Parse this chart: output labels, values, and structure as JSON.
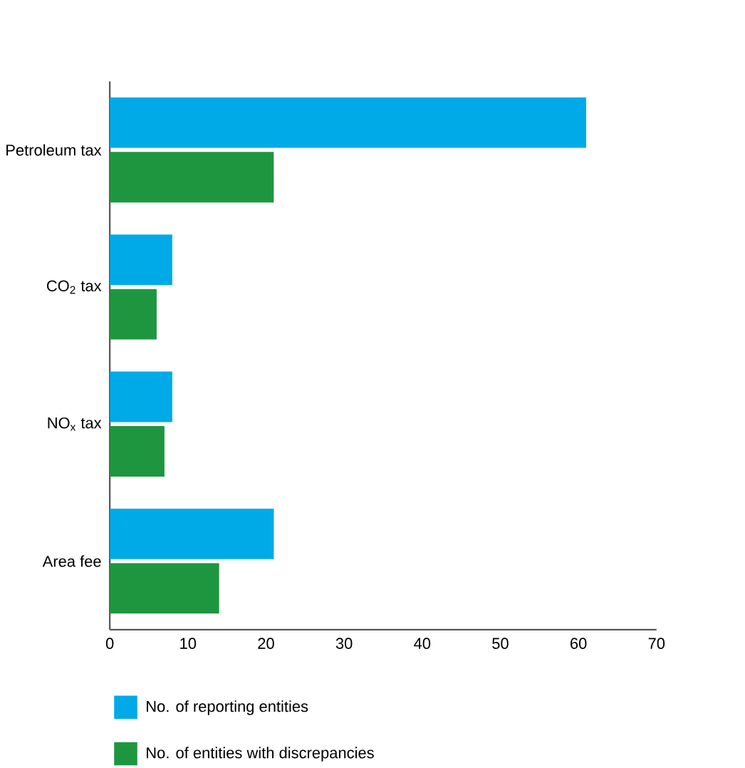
{
  "chart_data": {
    "type": "bar",
    "orientation": "horizontal",
    "categories": [
      "Petroleum tax",
      "CO$_{2}$ tax",
      "NO$_{x}$ tax",
      "Area fee"
    ],
    "series": [
      {
        "name": "No. of reporting entities",
        "color": "#00aae7",
        "values": [
          61,
          8,
          8,
          21
        ]
      },
      {
        "name": "No. of entities with discrepancies",
        "color": "#1e9640",
        "values": [
          21,
          6,
          7,
          14
        ]
      }
    ],
    "xlim": [
      0,
      70
    ],
    "xticks": [
      0,
      10,
      20,
      30,
      40,
      50,
      60,
      70
    ],
    "grid": false,
    "legend": "bottom"
  }
}
